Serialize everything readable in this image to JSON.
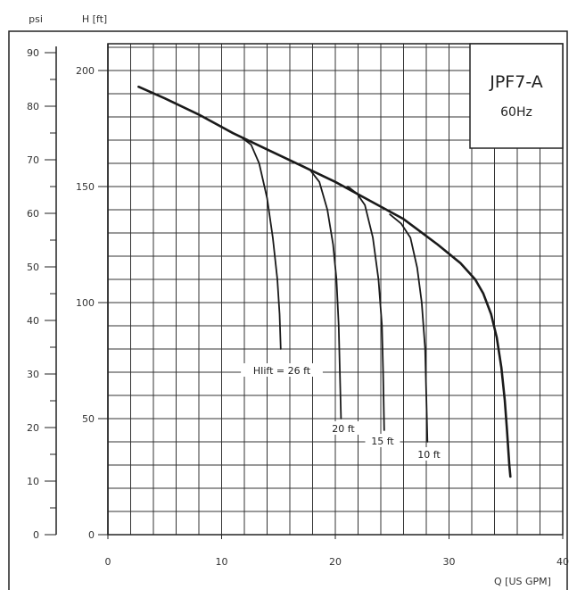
{
  "chart_data": {
    "type": "line",
    "model": "JPF7-A",
    "frequency": "60Hz",
    "psi_axis_label": "psi",
    "h_axis_label": "H [ft]",
    "x_axis_label": "Q [US GPM]",
    "xlim": [
      0,
      40
    ],
    "x_ticks": [
      "0",
      "10",
      "20",
      "30",
      "40"
    ],
    "h_lim": [
      0,
      200
    ],
    "h_ticks": [
      "0",
      "50",
      "100",
      "150",
      "200"
    ],
    "psi_lim": [
      0,
      90
    ],
    "psi_ticks": [
      "0",
      "10",
      "20",
      "30",
      "40",
      "50",
      "60",
      "70",
      "80",
      "90"
    ],
    "grid": true,
    "series": [
      {
        "role": "main",
        "points": [
          [
            2.7,
            193
          ],
          [
            5,
            188
          ],
          [
            8,
            181
          ],
          [
            11,
            173
          ],
          [
            14,
            166
          ],
          [
            17,
            159
          ],
          [
            20,
            152
          ],
          [
            23,
            144
          ],
          [
            26,
            136
          ],
          [
            29,
            125
          ],
          [
            31,
            117
          ],
          [
            32.3,
            110
          ],
          [
            33,
            104
          ],
          [
            33.7,
            95
          ],
          [
            34.2,
            85
          ],
          [
            34.6,
            72
          ],
          [
            34.9,
            58
          ],
          [
            35.1,
            45
          ],
          [
            35.3,
            30
          ],
          [
            35.4,
            25
          ]
        ]
      },
      {
        "role": "lift",
        "label": "HIift = 26 ft",
        "points": [
          [
            11.8,
            171
          ],
          [
            12.6,
            168
          ],
          [
            13.3,
            160
          ],
          [
            14,
            145
          ],
          [
            14.5,
            128
          ],
          [
            14.9,
            110
          ],
          [
            15.1,
            95
          ],
          [
            15.2,
            80
          ]
        ]
      },
      {
        "role": "lift",
        "label": "20 ft",
        "points": [
          [
            17.1,
            159
          ],
          [
            17.8,
            157
          ],
          [
            18.6,
            152
          ],
          [
            19.3,
            140
          ],
          [
            19.8,
            125
          ],
          [
            20.1,
            110
          ],
          [
            20.3,
            90
          ],
          [
            20.4,
            70
          ],
          [
            20.5,
            50
          ]
        ]
      },
      {
        "role": "lift",
        "label": "15 ft",
        "points": [
          [
            21.1,
            150
          ],
          [
            21.9,
            147
          ],
          [
            22.6,
            142
          ],
          [
            23.3,
            128
          ],
          [
            23.8,
            110
          ],
          [
            24.1,
            90
          ],
          [
            24.2,
            70
          ],
          [
            24.3,
            45
          ]
        ]
      },
      {
        "role": "lift",
        "label": "10 ft",
        "points": [
          [
            24.8,
            138
          ],
          [
            25.8,
            134
          ],
          [
            26.6,
            128
          ],
          [
            27.2,
            115
          ],
          [
            27.6,
            100
          ],
          [
            27.9,
            80
          ],
          [
            28,
            60
          ],
          [
            28.1,
            40
          ]
        ]
      }
    ]
  }
}
